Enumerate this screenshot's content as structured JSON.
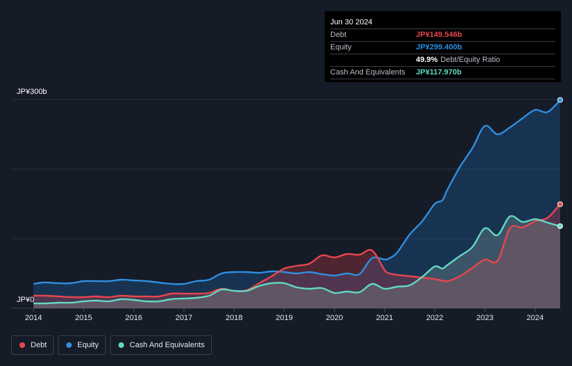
{
  "tooltip": {
    "date": "Jun 30 2024",
    "rows": [
      {
        "label": "Debt",
        "value": "JP¥149.546b",
        "color": "#e8464f"
      },
      {
        "label": "Equity",
        "value": "JP¥299.400b",
        "color": "#2f8fe0"
      },
      {
        "label": "",
        "value": "49.9%",
        "extra": "Debt/Equity Ratio",
        "color": "#ffffff"
      },
      {
        "label": "Cash And Equivalents",
        "value": "JP¥117.970b",
        "color": "#62d9c4"
      }
    ]
  },
  "legend": [
    {
      "label": "Debt",
      "color": "#e8464f"
    },
    {
      "label": "Equity",
      "color": "#2f8fe0"
    },
    {
      "label": "Cash And Equivalents",
      "color": "#62d9c4"
    }
  ],
  "chart_data": {
    "type": "area",
    "title": "",
    "xlabel": "",
    "ylabel": "",
    "y_tick_labels": [
      "JP¥300b",
      "JP¥0"
    ],
    "ylim": [
      0,
      300
    ],
    "xlim": [
      2014.0,
      2024.5
    ],
    "x_ticks": [
      2014,
      2015,
      2016,
      2017,
      2018,
      2019,
      2020,
      2021,
      2022,
      2023,
      2024
    ],
    "series": [
      {
        "name": "Equity",
        "color": "#2f8fe0",
        "x": [
          2014.0,
          2014.2,
          2014.5,
          2014.75,
          2015.0,
          2015.25,
          2015.5,
          2015.75,
          2016.0,
          2016.25,
          2016.5,
          2016.75,
          2017.0,
          2017.25,
          2017.5,
          2017.75,
          2018.0,
          2018.25,
          2018.5,
          2018.75,
          2019.0,
          2019.25,
          2019.5,
          2019.75,
          2020.0,
          2020.25,
          2020.5,
          2020.75,
          2021.0,
          2021.1,
          2021.25,
          2021.5,
          2021.75,
          2022.0,
          2022.15,
          2022.25,
          2022.5,
          2022.75,
          2023.0,
          2023.25,
          2023.5,
          2023.75,
          2024.0,
          2024.25,
          2024.5
        ],
        "values": [
          35,
          37,
          36,
          36,
          39,
          39,
          39,
          41,
          40,
          39,
          37,
          35,
          35,
          39,
          41,
          50,
          52,
          52,
          51,
          53,
          52,
          50,
          52,
          49,
          47,
          50,
          49,
          72,
          70,
          72,
          80,
          106,
          125,
          150,
          155,
          170,
          203,
          230,
          262,
          250,
          260,
          273,
          285,
          282,
          299.4
        ]
      },
      {
        "name": "Debt",
        "color": "#e8464f",
        "x": [
          2014.0,
          2014.25,
          2014.5,
          2014.75,
          2015.0,
          2015.25,
          2015.5,
          2015.75,
          2016.0,
          2016.25,
          2016.5,
          2016.75,
          2017.0,
          2017.25,
          2017.5,
          2017.75,
          2018.0,
          2018.25,
          2018.5,
          2018.75,
          2019.0,
          2019.25,
          2019.5,
          2019.75,
          2020.0,
          2020.25,
          2020.5,
          2020.75,
          2021.0,
          2021.1,
          2021.25,
          2021.5,
          2021.75,
          2022.0,
          2022.25,
          2022.5,
          2022.75,
          2023.0,
          2023.25,
          2023.5,
          2023.75,
          2024.0,
          2024.25,
          2024.5
        ],
        "values": [
          18,
          18,
          17,
          16,
          16,
          17,
          16,
          18,
          17,
          17,
          17,
          21,
          21,
          21,
          22,
          28,
          25,
          26,
          36,
          46,
          57,
          61,
          64,
          76,
          73,
          78,
          77,
          83,
          55,
          50,
          48,
          46,
          44,
          42,
          39,
          46,
          58,
          70,
          68,
          115,
          116,
          125,
          130,
          149.5
        ]
      },
      {
        "name": "Cash And Equivalents",
        "color": "#62d9c4",
        "x": [
          2014.0,
          2014.25,
          2014.5,
          2014.75,
          2015.0,
          2015.25,
          2015.5,
          2015.75,
          2016.0,
          2016.25,
          2016.5,
          2016.75,
          2017.0,
          2017.25,
          2017.5,
          2017.75,
          2018.0,
          2018.25,
          2018.5,
          2018.75,
          2019.0,
          2019.25,
          2019.5,
          2019.75,
          2020.0,
          2020.25,
          2020.5,
          2020.75,
          2021.0,
          2021.25,
          2021.5,
          2021.75,
          2022.0,
          2022.15,
          2022.25,
          2022.5,
          2022.75,
          2023.0,
          2023.25,
          2023.5,
          2023.75,
          2024.0,
          2024.25,
          2024.5
        ],
        "values": [
          7,
          7,
          8,
          8,
          10,
          11,
          10,
          13,
          12,
          10,
          10,
          13,
          14,
          15,
          18,
          27,
          25,
          25,
          32,
          36,
          36,
          30,
          28,
          29,
          22,
          24,
          23,
          35,
          28,
          31,
          33,
          45,
          60,
          57,
          62,
          75,
          88,
          115,
          105,
          132,
          124,
          128,
          123,
          118
        ]
      }
    ]
  }
}
